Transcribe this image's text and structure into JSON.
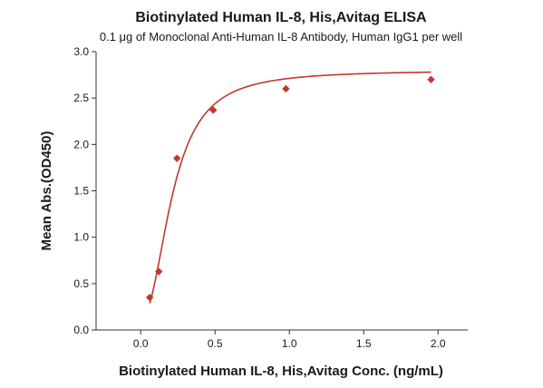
{
  "chart_data": {
    "type": "scatter",
    "title": "Biotinylated Human IL-8, His,Avitag ELISA",
    "subtitle": "0.1 μg of Monoclonal Anti-Human IL-8 Antibody, Human IgG1 per well",
    "xlabel": "Biotinylated Human IL-8, His,Avitag Conc. (ng/mL)",
    "ylabel": "Mean Abs.(OD450)",
    "xlim": [
      -0.3,
      2.2
    ],
    "ylim": [
      0,
      3.0
    ],
    "xticks": [
      0.0,
      0.5,
      1.0,
      1.5,
      2.0
    ],
    "xtick_labels": [
      "0.0",
      "0.5",
      "1.0",
      "1.5",
      "2.0"
    ],
    "yticks": [
      0.0,
      0.5,
      1.0,
      1.5,
      2.0,
      2.5,
      3.0
    ],
    "ytick_labels": [
      "0.0",
      "0.5",
      "1.0",
      "1.5",
      "2.0",
      "2.5",
      "3.0"
    ],
    "grid": false,
    "colors": {
      "series": "#c0392b",
      "axis": "#333333"
    },
    "series": [
      {
        "marker": "diamond",
        "x": [
          0.061,
          0.122,
          0.244,
          0.488,
          0.977,
          1.953
        ],
        "y": [
          0.35,
          0.63,
          1.85,
          2.37,
          2.6,
          2.7
        ]
      }
    ],
    "fit": {
      "type": "4PL",
      "bottom": 0.13,
      "top": 2.8,
      "ec50": 0.215,
      "hill": 2.2,
      "x_range": [
        0.061,
        1.953
      ]
    }
  }
}
